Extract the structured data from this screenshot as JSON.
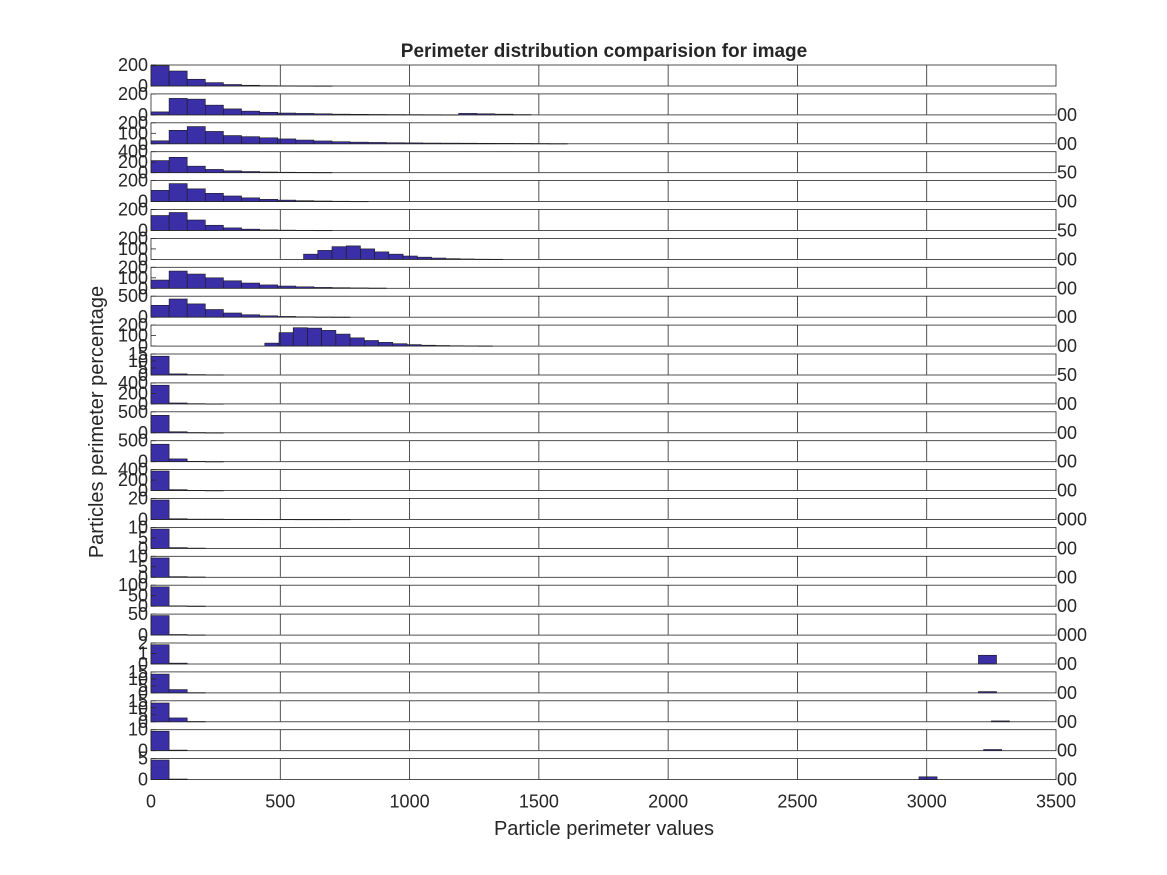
{
  "chart_data": {
    "type": "bar",
    "title": "Perimeter distribution comparision for image",
    "xlabel": "Particle perimeter values",
    "ylabel": "Particles perimeter percentage",
    "xlim": [
      0,
      3500
    ],
    "x_ticks": [
      "0",
      "500",
      "1000",
      "1500",
      "2000",
      "2500",
      "3000",
      "3500"
    ],
    "bar_color": "#3a2fa6",
    "panels": [
      {
        "y_ticks": [
          "0",
          "200"
        ],
        "right_label": "",
        "xmax": 3500,
        "bin_width": 70,
        "start": 0,
        "values": [
          270,
          200,
          90,
          45,
          20,
          10,
          5,
          3,
          2,
          1
        ],
        "ymax": 280
      },
      {
        "y_ticks": [
          "0",
          "200"
        ],
        "right_label": "00",
        "xmax": 3500,
        "bin_width": 70,
        "start": 0,
        "values": [
          40,
          220,
          210,
          130,
          80,
          50,
          35,
          25,
          20,
          15,
          10,
          8,
          6,
          5,
          4,
          3,
          2,
          20,
          15,
          10,
          5
        ],
        "ymax": 280
      },
      {
        "y_ticks": [
          "0",
          "100",
          "200"
        ],
        "right_label": "00",
        "xmax": 3500,
        "bin_width": 70,
        "start": 0,
        "values": [
          40,
          180,
          230,
          165,
          110,
          95,
          80,
          65,
          50,
          38,
          28,
          22,
          18,
          14,
          12,
          10,
          9,
          8,
          7,
          6,
          5,
          4,
          3
        ],
        "ymax": 280
      },
      {
        "y_ticks": [
          "0",
          "200",
          "400"
        ],
        "right_label": "50",
        "xmax": 3500,
        "bin_width": 70,
        "start": 0,
        "values": [
          260,
          330,
          140,
          70,
          40,
          25,
          15,
          10,
          8,
          6
        ],
        "ymax": 450
      },
      {
        "y_ticks": [
          "0",
          "200"
        ],
        "right_label": "00",
        "xmax": 3500,
        "bin_width": 70,
        "start": 0,
        "values": [
          150,
          240,
          170,
          110,
          75,
          50,
          30,
          20,
          12,
          8,
          5,
          3
        ],
        "ymax": 280
      },
      {
        "y_ticks": [
          "0",
          "200"
        ],
        "right_label": "50",
        "xmax": 3500,
        "bin_width": 70,
        "start": 0,
        "values": [
          200,
          240,
          140,
          70,
          35,
          18,
          8,
          5,
          3,
          2
        ],
        "ymax": 280
      },
      {
        "y_ticks": [
          "0",
          "100",
          "200"
        ],
        "right_label": "00",
        "xmax": 3500,
        "bin_width": 55,
        "start": 590,
        "values": [
          70,
          120,
          170,
          180,
          140,
          100,
          70,
          45,
          30,
          18,
          10,
          6,
          3,
          2
        ],
        "ymax": 280
      },
      {
        "y_ticks": [
          "0",
          "100",
          "200"
        ],
        "right_label": "00",
        "xmax": 3500,
        "bin_width": 70,
        "start": 0,
        "values": [
          110,
          230,
          190,
          140,
          100,
          70,
          45,
          30,
          20,
          12,
          8,
          5,
          3
        ],
        "ymax": 280
      },
      {
        "y_ticks": [
          "0",
          "500"
        ],
        "right_label": "00",
        "xmax": 3500,
        "bin_width": 70,
        "start": 0,
        "values": [
          340,
          520,
          380,
          220,
          120,
          70,
          40,
          22,
          12,
          6,
          3
        ],
        "ymax": 600
      },
      {
        "y_ticks": [
          "0",
          "100",
          "200"
        ],
        "right_label": "00",
        "xmax": 3500,
        "bin_width": 55,
        "start": 440,
        "values": [
          40,
          180,
          245,
          240,
          210,
          160,
          110,
          75,
          50,
          32,
          20,
          12,
          8,
          5,
          3,
          2
        ],
        "ymax": 280
      },
      {
        "y_ticks": [
          "0",
          "5",
          "10",
          "15"
        ],
        "right_label": "50",
        "xmax": 3500,
        "bin_width": 70,
        "start": 0,
        "values": [
          17,
          1,
          0.4,
          0.2
        ],
        "ymax": 19
      },
      {
        "y_ticks": [
          "0",
          "200",
          "400"
        ],
        "right_label": "00",
        "xmax": 3500,
        "bin_width": 70,
        "start": 0,
        "values": [
          400,
          20,
          6,
          2
        ],
        "ymax": 450
      },
      {
        "y_ticks": [
          "0",
          "500"
        ],
        "right_label": "00",
        "xmax": 3500,
        "bin_width": 70,
        "start": 0,
        "values": [
          500,
          30,
          8,
          3
        ],
        "ymax": 600
      },
      {
        "y_ticks": [
          "0",
          "500"
        ],
        "right_label": "00",
        "xmax": 3500,
        "bin_width": 70,
        "start": 0,
        "values": [
          500,
          80,
          12,
          4
        ],
        "ymax": 600
      },
      {
        "y_ticks": [
          "0",
          "200",
          "400"
        ],
        "right_label": "00",
        "xmax": 3500,
        "bin_width": 70,
        "start": 0,
        "values": [
          420,
          20,
          6,
          2
        ],
        "ymax": 450
      },
      {
        "y_ticks": [
          "0",
          "20"
        ],
        "right_label": "000",
        "xmax": 3500,
        "bin_width": 70,
        "start": 0,
        "values": [
          26,
          1,
          0.5,
          0.5,
          0.3,
          0.3,
          0.2,
          0.2,
          0.1,
          0.1,
          0.1
        ],
        "ymax": 28
      },
      {
        "y_ticks": [
          "0",
          "5",
          "10"
        ],
        "right_label": "00",
        "xmax": 3500,
        "bin_width": 70,
        "start": 0,
        "values": [
          12,
          0.5,
          0.2
        ],
        "ymax": 13
      },
      {
        "y_ticks": [
          "0",
          "5",
          "10"
        ],
        "right_label": "00",
        "xmax": 3500,
        "bin_width": 70,
        "start": 0,
        "values": [
          12,
          0.4,
          0.2
        ],
        "ymax": 13
      },
      {
        "y_ticks": [
          "0",
          "50",
          "100"
        ],
        "right_label": "00",
        "xmax": 3500,
        "bin_width": 70,
        "start": 0,
        "values": [
          115,
          2,
          0.5
        ],
        "ymax": 125
      },
      {
        "y_ticks": [
          "0",
          "50"
        ],
        "right_label": "000",
        "xmax": 3500,
        "bin_width": 70,
        "start": 0,
        "values": [
          65,
          2,
          0.5
        ],
        "ymax": 70
      },
      {
        "y_ticks": [
          "0",
          "1",
          "2"
        ],
        "right_label": "00",
        "xmax": 3500,
        "bin_width": 70,
        "start": 0,
        "values": [
          2.2,
          0.1
        ],
        "ymax": 2.4,
        "extra_bars": [
          {
            "x0": 3200,
            "x1": 3270,
            "value": 1
          }
        ]
      },
      {
        "y_ticks": [
          "0",
          "5",
          "10",
          "15"
        ],
        "right_label": "00",
        "xmax": 3500,
        "bin_width": 70,
        "start": 0,
        "values": [
          17,
          3,
          0.3
        ],
        "ymax": 19,
        "extra_bars": [
          {
            "x0": 3200,
            "x1": 3270,
            "value": 1.2
          }
        ]
      },
      {
        "y_ticks": [
          "0",
          "5",
          "10",
          "15"
        ],
        "right_label": "00",
        "xmax": 3500,
        "bin_width": 70,
        "start": 0,
        "values": [
          17,
          3.5,
          0.3
        ],
        "ymax": 19,
        "extra_bars": [
          {
            "x0": 3250,
            "x1": 3320,
            "value": 0.8
          }
        ]
      },
      {
        "y_ticks": [
          "0",
          "10"
        ],
        "right_label": "00",
        "xmax": 3500,
        "bin_width": 70,
        "start": 0,
        "values": [
          13,
          0.4
        ],
        "ymax": 14,
        "extra_bars": [
          {
            "x0": 3220,
            "x1": 3290,
            "value": 0.8
          }
        ]
      },
      {
        "y_ticks": [
          "0",
          "5"
        ],
        "right_label": "00",
        "xmax": 3500,
        "bin_width": 70,
        "start": 0,
        "values": [
          7,
          0.2
        ],
        "ymax": 7.5,
        "extra_bars": [
          {
            "x0": 2970,
            "x1": 3040,
            "value": 1
          }
        ]
      }
    ]
  }
}
